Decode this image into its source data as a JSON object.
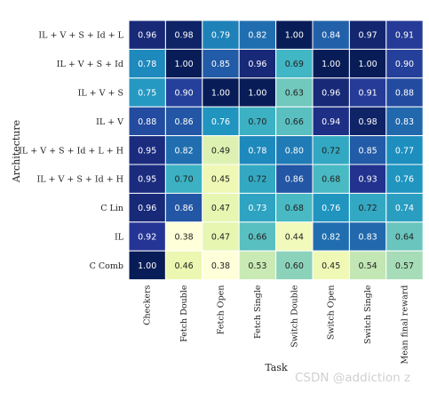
{
  "chart_data": {
    "type": "heatmap",
    "xlabel": "Task",
    "ylabel": "Architecture",
    "columns": [
      "Checkers",
      "Fetch Double",
      "Fetch Open",
      "Fetch Single",
      "Switch Double",
      "Switch Open",
      "Switch Single",
      "Mean final reward"
    ],
    "rows": [
      "IL + V + S + Id + L",
      "IL + V + S + Id",
      "IL + V + S",
      "IL + V",
      "IL + V + S + Id + L + H",
      "IL + V + S + Id + H",
      "C Lin",
      "IL",
      "C Comb"
    ],
    "values": [
      [
        0.96,
        0.98,
        0.79,
        0.82,
        1.0,
        0.84,
        0.97,
        0.91
      ],
      [
        0.78,
        1.0,
        0.85,
        0.96,
        0.69,
        1.0,
        1.0,
        0.9
      ],
      [
        0.75,
        0.9,
        1.0,
        1.0,
        0.63,
        0.96,
        0.91,
        0.88
      ],
      [
        0.88,
        0.86,
        0.76,
        0.7,
        0.66,
        0.94,
        0.98,
        0.83
      ],
      [
        0.95,
        0.82,
        0.49,
        0.78,
        0.8,
        0.72,
        0.85,
        0.77
      ],
      [
        0.95,
        0.7,
        0.45,
        0.72,
        0.86,
        0.68,
        0.93,
        0.76
      ],
      [
        0.96,
        0.86,
        0.47,
        0.73,
        0.68,
        0.76,
        0.72,
        0.74
      ],
      [
        0.92,
        0.38,
        0.47,
        0.66,
        0.44,
        0.82,
        0.83,
        0.64
      ],
      [
        1.0,
        0.46,
        0.38,
        0.53,
        0.6,
        0.45,
        0.54,
        0.57
      ]
    ],
    "value_range": [
      0.38,
      1.0
    ],
    "colormap": "YlGnBu",
    "grid": false,
    "legend": "none"
  },
  "watermark": "CSDN @addiction z"
}
